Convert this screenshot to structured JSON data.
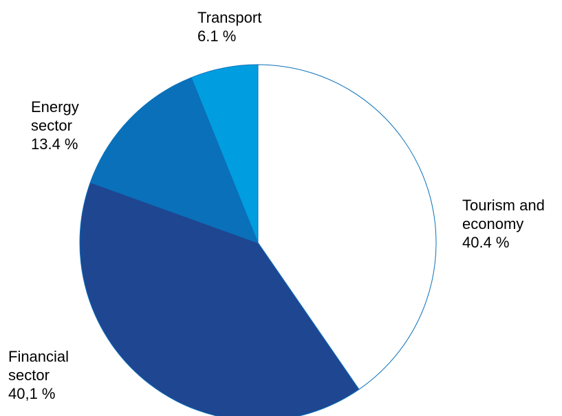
{
  "chart_data": {
    "type": "pie",
    "title": "",
    "slices": [
      {
        "line1": "Tourism and",
        "line2": "economy",
        "value_label": "40.4 %",
        "value": 40.4,
        "color": "#ffffff"
      },
      {
        "line1": "Financial",
        "line2": "sector",
        "value_label": "40,1 %",
        "value": 40.1,
        "color": "#1f4691"
      },
      {
        "line1": "Energy",
        "line2": "sector",
        "value_label": "13.4 %",
        "value": 13.4,
        "color": "#0a70b9"
      },
      {
        "line1": "Transport",
        "line2": "",
        "value_label": "6.1 %",
        "value": 6.1,
        "color": "#009ee0"
      }
    ],
    "start_angle_deg": 0,
    "direction": "clockwise",
    "outline_color": "#0a70b9",
    "legend": "none"
  }
}
